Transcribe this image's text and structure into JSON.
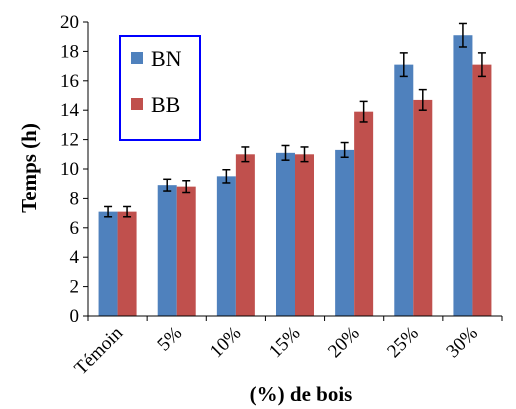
{
  "chart_data": {
    "type": "bar",
    "title": "",
    "xlabel": "(%)  de bois",
    "ylabel": "Temps  (h)",
    "categories": [
      "Témoin",
      "5%",
      "10%",
      "15%",
      "20%",
      "25%",
      "30%"
    ],
    "series": [
      {
        "name": "BN",
        "color": "#4f81bd",
        "values": [
          7.1,
          8.9,
          9.5,
          11.1,
          11.3,
          17.1,
          19.1
        ],
        "errors": [
          0.35,
          0.4,
          0.45,
          0.5,
          0.5,
          0.8,
          0.8
        ]
      },
      {
        "name": "BB",
        "color": "#c0504d",
        "values": [
          7.1,
          8.8,
          11.0,
          11.0,
          13.9,
          14.7,
          17.1
        ],
        "errors": [
          0.35,
          0.4,
          0.5,
          0.5,
          0.7,
          0.7,
          0.8
        ]
      }
    ],
    "ylim": [
      0,
      20
    ],
    "yticks": [
      0,
      2,
      4,
      6,
      8,
      10,
      12,
      14,
      16,
      18,
      20
    ],
    "grid": false,
    "legend": "top-left",
    "legend_box_color": "#0000ff"
  }
}
